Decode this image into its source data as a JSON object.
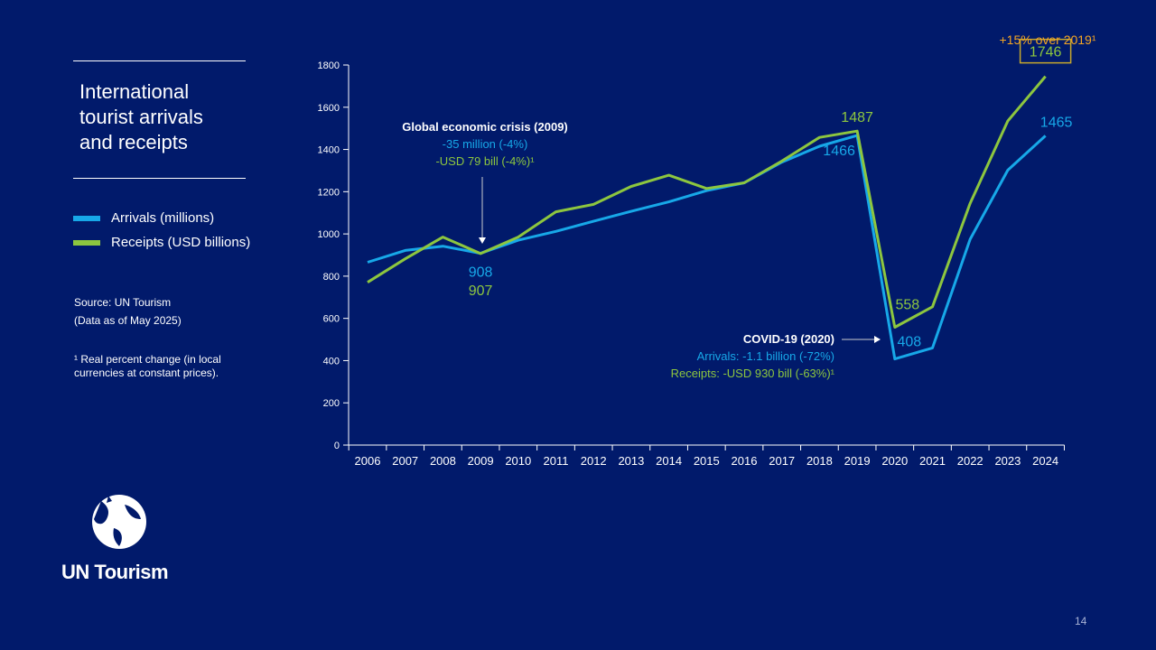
{
  "sidebar": {
    "title_lines": [
      "International",
      "tourist arrivals",
      "and receipts"
    ],
    "legend": [
      {
        "label": "Arrivals (millions)",
        "color": "#17a8e8"
      },
      {
        "label": "Receipts (USD billions)",
        "color": "#8dc63f"
      }
    ],
    "source": "Source: UN Tourism",
    "data_date": "(Data as of May 2025)",
    "footnote": "¹ Real percent change (in local currencies at constant prices)."
  },
  "logo": {
    "icon": "un-tourism-globe-icon",
    "text": "UN Tourism"
  },
  "page_number": "14",
  "chart_data": {
    "type": "line",
    "x": [
      "2006",
      "2007",
      "2008",
      "2009",
      "2010",
      "2011",
      "2012",
      "2013",
      "2014",
      "2015",
      "2016",
      "2017",
      "2018",
      "2019",
      "2020",
      "2021",
      "2022",
      "2023",
      "2024"
    ],
    "ylim": [
      0,
      1800
    ],
    "yticks": [
      0,
      200,
      400,
      600,
      800,
      1000,
      1200,
      1400,
      1600,
      1800
    ],
    "grid": false,
    "series": [
      {
        "name": "Arrivals (millions)",
        "color": "#17a8e8",
        "values": [
          866,
          922,
          942,
          908,
          970,
          1012,
          1060,
          1107,
          1152,
          1205,
          1242,
          1340,
          1415,
          1466,
          408,
          460,
          975,
          1302,
          1465
        ]
      },
      {
        "name": "Receipts (USD billions)",
        "color": "#8dc63f",
        "values": [
          771,
          882,
          985,
          907,
          985,
          1105,
          1140,
          1225,
          1278,
          1215,
          1242,
          1345,
          1457,
          1487,
          558,
          655,
          1145,
          1535,
          1746
        ]
      }
    ],
    "data_labels": [
      {
        "series": 0,
        "year": "2009",
        "text": "908"
      },
      {
        "series": 1,
        "year": "2009",
        "text": "907"
      },
      {
        "series": 1,
        "year": "2019",
        "text": "1487"
      },
      {
        "series": 0,
        "year": "2019",
        "text": "1466"
      },
      {
        "series": 1,
        "year": "2020",
        "text": "558"
      },
      {
        "series": 0,
        "year": "2020",
        "text": "408"
      },
      {
        "series": 0,
        "year": "2024",
        "text": "1465"
      },
      {
        "series": 1,
        "year": "2024",
        "text": "1746"
      }
    ],
    "annotations": {
      "crisis": {
        "title": "Global economic crisis (2009)",
        "arrivals": "-35 million (-4%)",
        "receipts": "-USD 79 bill (-4%)¹"
      },
      "covid": {
        "title": "COVID-19 (2020)",
        "arrivals": "Arrivals: -1.1 billion (-72%)",
        "receipts": "Receipts: -USD 930 bill (-63%)¹"
      },
      "recovery": {
        "text": "+15% over 2019¹",
        "color": "#f5a623"
      }
    },
    "colors": {
      "axis": "#ffffff",
      "box": "#c8a82c",
      "dark_label": "#ffffff"
    }
  }
}
